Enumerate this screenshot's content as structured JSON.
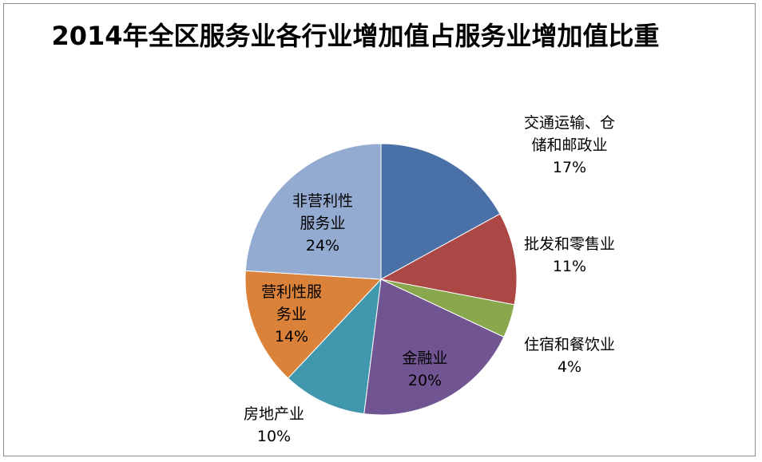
{
  "chart_data": {
    "type": "pie",
    "title": "2014年全区服务业各行业增加值占服务业增加值比重",
    "slices": [
      {
        "label_lines": [
          "交通运输、仓",
          "储和邮政业"
        ],
        "percent_label": "17%",
        "value": 17,
        "color": "#4a70a8"
      },
      {
        "label_lines": [
          "批发和零售业"
        ],
        "percent_label": "11%",
        "value": 11,
        "color": "#ab4744"
      },
      {
        "label_lines": [
          "住宿和餐饮业"
        ],
        "percent_label": "4%",
        "value": 4,
        "color": "#89a84e"
      },
      {
        "label_lines": [
          "金融业"
        ],
        "percent_label": "20%",
        "value": 20,
        "color": "#715592"
      },
      {
        "label_lines": [
          "房地产业"
        ],
        "percent_label": "10%",
        "value": 10,
        "color": "#4197ad"
      },
      {
        "label_lines": [
          "营利性服",
          "务业"
        ],
        "percent_label": "14%",
        "value": 14,
        "color": "#da8239"
      },
      {
        "label_lines": [
          "非营利性",
          "服务业"
        ],
        "percent_label": "24%",
        "value": 24,
        "color": "#94abd1"
      }
    ]
  }
}
